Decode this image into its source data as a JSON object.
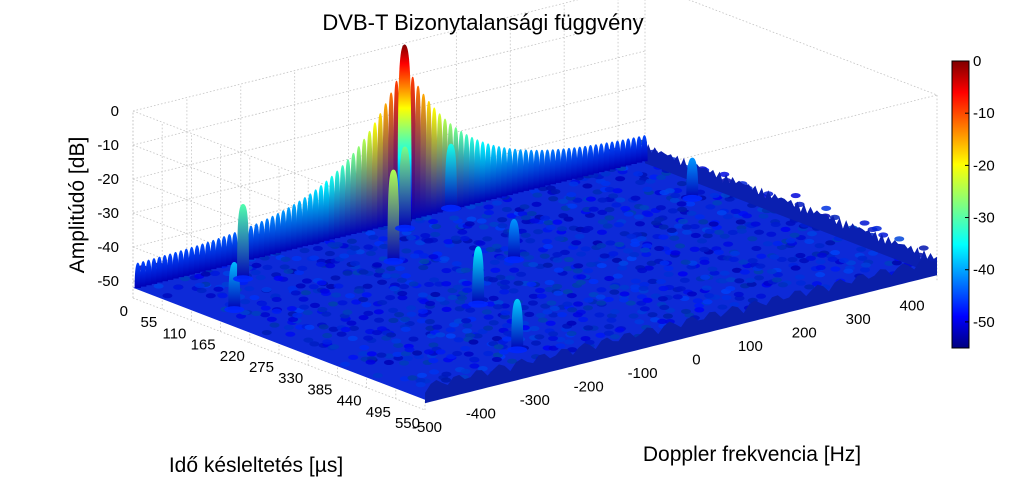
{
  "chart_data": {
    "type": "surface3d",
    "title": "DVB-T Bizonytalansági függvény",
    "xlabel": "Doppler frekvencia [Hz]",
    "ylabel": "Idő késleltetés [µs]",
    "zlabel": "Amplitúdó [dB]",
    "x_ticks": [
      "-500",
      "-400",
      "-300",
      "-200",
      "-100",
      "0",
      "100",
      "200",
      "300",
      "400"
    ],
    "y_ticks": [
      "0",
      "55",
      "110",
      "165",
      "220",
      "275",
      "330",
      "385",
      "440",
      "495",
      "550"
    ],
    "z_ticks": [
      "0",
      "-10",
      "-20",
      "-30",
      "-40",
      "-50"
    ],
    "xlim": [
      -500,
      450
    ],
    "ylim": [
      0,
      550
    ],
    "zlim": [
      -55,
      0
    ],
    "colorbar": {
      "ticks": [
        "0",
        "-10",
        "-20",
        "-30",
        "-40",
        "-50"
      ],
      "range": [
        -55,
        0
      ],
      "colormap": "jet"
    },
    "grid": true,
    "floor_level_db": -52,
    "main_peak": {
      "doppler_hz": 0,
      "delay_us": 0,
      "amplitude_db": 0
    },
    "ridge_along_delay_zero": {
      "min_db": -45,
      "max_db": -5
    },
    "secondary_peaks": [
      {
        "doppler_hz": -450,
        "delay_us": 140,
        "amplitude_db": -38
      },
      {
        "doppler_hz": -350,
        "delay_us": 55,
        "amplitude_db": -30
      },
      {
        "doppler_hz": -250,
        "delay_us": 470,
        "amplitude_db": -37
      },
      {
        "doppler_hz": -160,
        "delay_us": 305,
        "amplitude_db": -35
      },
      {
        "doppler_hz": -130,
        "delay_us": 115,
        "amplitude_db": -25
      },
      {
        "doppler_hz": -20,
        "delay_us": 25,
        "amplitude_db": -28
      },
      {
        "doppler_hz": 10,
        "delay_us": 200,
        "amplitude_db": -40
      },
      {
        "doppler_hz": 90,
        "delay_us": 0,
        "amplitude_db": -33
      },
      {
        "doppler_hz": 390,
        "delay_us": 150,
        "amplitude_db": -40
      }
    ]
  }
}
